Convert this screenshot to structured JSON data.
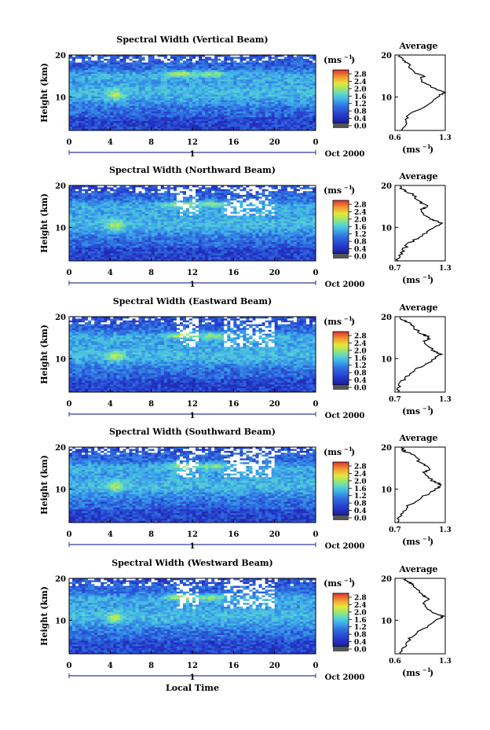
{
  "common": {
    "ylabel": "Height (km)",
    "y_ticks": [
      "20",
      "10"
    ],
    "x_ticks": [
      "0",
      "4",
      "8",
      "12",
      "16",
      "20",
      "0"
    ],
    "day_label": "1",
    "month_label": "Oct 2000",
    "unit_label": "(ms",
    "unit_exp": "−1",
    "cb_ticks": [
      "2.8",
      "2.4",
      "2.0",
      "1.6",
      "1.2",
      "0.8",
      "0.4",
      "0.0"
    ],
    "avg_title": "Average",
    "avg_unit": "(ms",
    "avg_y_ticks": [
      "20",
      "10"
    ],
    "xlabel_bottom": "Local Time"
  },
  "colors": {
    "background_low": "#2433c8",
    "mid": "#3fa8e8",
    "high": "#e6e63a",
    "peak": "#e0312b",
    "line": "#000000"
  },
  "chart_data": [
    {
      "type": "heatmap",
      "title": "Spectral Width (Vertical Beam)",
      "x_range": [
        0,
        24
      ],
      "y_range": [
        2,
        20
      ],
      "colorbar_range": [
        0.0,
        2.8
      ],
      "avg_profile": {
        "x_ticks": [
          "0.6",
          "1.3"
        ],
        "xlim": [
          0.6,
          1.3
        ],
        "height_km": [
          2,
          4,
          6,
          8,
          10,
          11,
          12,
          14,
          15,
          16,
          18,
          19,
          20
        ],
        "width": [
          0.7,
          0.75,
          0.8,
          1.05,
          1.2,
          1.28,
          1.15,
          0.95,
          1.0,
          0.85,
          0.78,
          0.7,
          0.65
        ]
      }
    },
    {
      "type": "heatmap",
      "title": "Spectral Width (Northward Beam)",
      "x_range": [
        0,
        24
      ],
      "y_range": [
        2,
        20
      ],
      "colorbar_range": [
        0.0,
        2.8
      ],
      "avg_profile": {
        "x_ticks": [
          "0.7",
          "1.3"
        ],
        "xlim": [
          0.7,
          1.3
        ],
        "height_km": [
          2,
          4,
          6,
          8,
          10,
          11,
          12,
          14,
          15,
          16,
          18,
          19,
          20
        ],
        "width": [
          0.72,
          0.78,
          0.85,
          1.02,
          1.18,
          1.26,
          1.12,
          1.0,
          1.08,
          1.0,
          0.9,
          0.8,
          0.75
        ]
      }
    },
    {
      "type": "heatmap",
      "title": "Spectral Width (Eastward Beam)",
      "x_range": [
        0,
        24
      ],
      "y_range": [
        2,
        20
      ],
      "colorbar_range": [
        0.0,
        2.8
      ],
      "avg_profile": {
        "x_ticks": [
          "0.7",
          "1.3"
        ],
        "xlim": [
          0.7,
          1.3
        ],
        "height_km": [
          2,
          4,
          6,
          8,
          10,
          11,
          12,
          14,
          15,
          16,
          18,
          19,
          20
        ],
        "width": [
          0.72,
          0.76,
          0.85,
          1.0,
          1.18,
          1.24,
          1.15,
          1.05,
          1.12,
          1.0,
          0.9,
          0.82,
          0.75
        ]
      }
    },
    {
      "type": "heatmap",
      "title": "Spectral Width (Southward Beam)",
      "x_range": [
        0,
        24
      ],
      "y_range": [
        2,
        20
      ],
      "colorbar_range": [
        0.0,
        2.8
      ],
      "avg_profile": {
        "x_ticks": [
          "0.7",
          "1.3"
        ],
        "xlim": [
          0.7,
          1.3
        ],
        "height_km": [
          2,
          4,
          6,
          8,
          10,
          11,
          12,
          14,
          15,
          16,
          18,
          19,
          20
        ],
        "width": [
          0.72,
          0.78,
          0.86,
          1.02,
          1.2,
          1.26,
          1.14,
          1.05,
          1.12,
          1.02,
          0.92,
          0.82,
          0.76
        ]
      }
    },
    {
      "type": "heatmap",
      "title": "Spectral Width (Westward Beam)",
      "x_range": [
        0,
        24
      ],
      "y_range": [
        2,
        20
      ],
      "colorbar_range": [
        0.0,
        2.8
      ],
      "avg_profile": {
        "x_ticks": [
          "0.6",
          "1.3"
        ],
        "xlim": [
          0.6,
          1.3
        ],
        "height_km": [
          2,
          4,
          6,
          8,
          10,
          11,
          12,
          14,
          15,
          16,
          18,
          19,
          20
        ],
        "width": [
          0.68,
          0.74,
          0.82,
          1.0,
          1.18,
          1.27,
          1.1,
          1.0,
          1.08,
          0.98,
          0.88,
          0.8,
          0.72
        ]
      }
    }
  ]
}
